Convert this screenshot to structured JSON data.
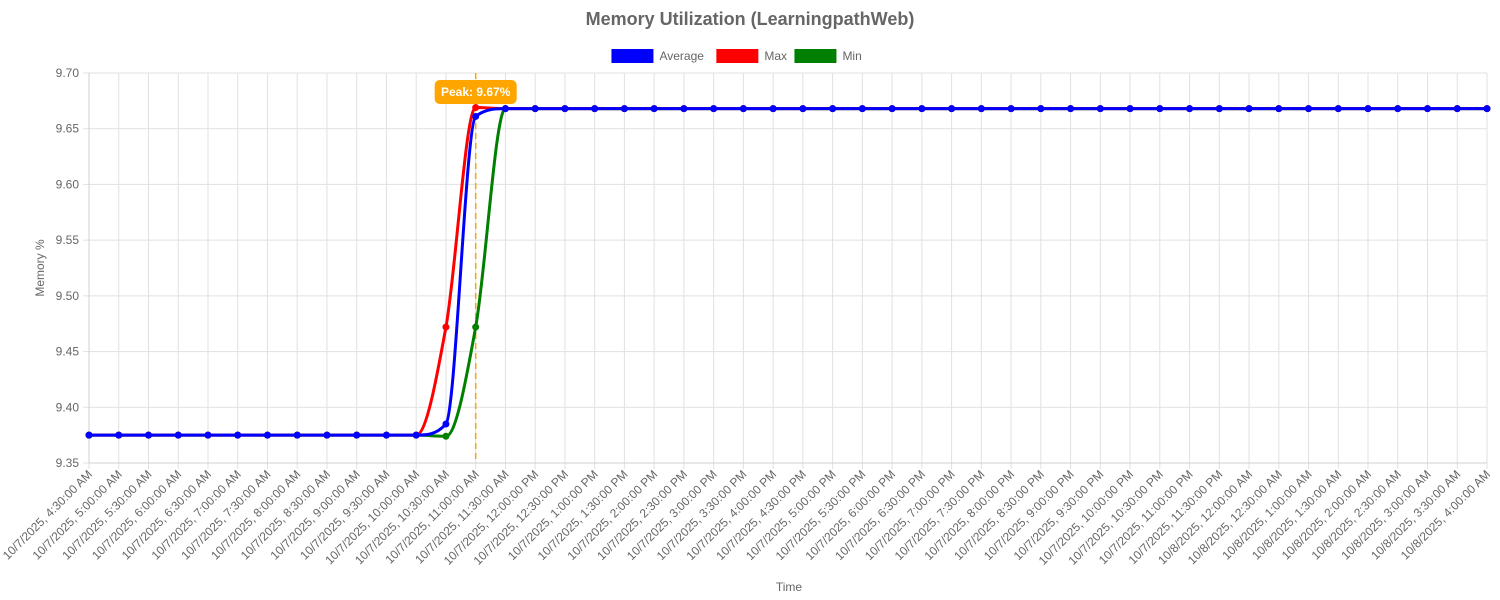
{
  "chart_data": {
    "type": "line",
    "title": "Memory Utilization (LearningpathWeb)",
    "xlabel": "Time",
    "ylabel": "Memory %",
    "ylim": [
      9.35,
      9.7
    ],
    "yticks": [
      "9.35",
      "9.40",
      "9.45",
      "9.50",
      "9.55",
      "9.60",
      "9.65",
      "9.70"
    ],
    "grid": true,
    "legend_position": "top-center",
    "categories": [
      "10/7/2025, 4:30:00 AM",
      "10/7/2025, 5:00:00 AM",
      "10/7/2025, 5:30:00 AM",
      "10/7/2025, 6:00:00 AM",
      "10/7/2025, 6:30:00 AM",
      "10/7/2025, 7:00:00 AM",
      "10/7/2025, 7:30:00 AM",
      "10/7/2025, 8:00:00 AM",
      "10/7/2025, 8:30:00 AM",
      "10/7/2025, 9:00:00 AM",
      "10/7/2025, 9:30:00 AM",
      "10/7/2025, 10:00:00 AM",
      "10/7/2025, 10:30:00 AM",
      "10/7/2025, 11:00:00 AM",
      "10/7/2025, 11:30:00 AM",
      "10/7/2025, 12:00:00 PM",
      "10/7/2025, 12:30:00 PM",
      "10/7/2025, 1:00:00 PM",
      "10/7/2025, 1:30:00 PM",
      "10/7/2025, 2:00:00 PM",
      "10/7/2025, 2:30:00 PM",
      "10/7/2025, 3:00:00 PM",
      "10/7/2025, 3:30:00 PM",
      "10/7/2025, 4:00:00 PM",
      "10/7/2025, 4:30:00 PM",
      "10/7/2025, 5:00:00 PM",
      "10/7/2025, 5:30:00 PM",
      "10/7/2025, 6:00:00 PM",
      "10/7/2025, 6:30:00 PM",
      "10/7/2025, 7:00:00 PM",
      "10/7/2025, 7:30:00 PM",
      "10/7/2025, 8:00:00 PM",
      "10/7/2025, 8:30:00 PM",
      "10/7/2025, 9:00:00 PM",
      "10/7/2025, 9:30:00 PM",
      "10/7/2025, 10:00:00 PM",
      "10/7/2025, 10:30:00 PM",
      "10/7/2025, 11:00:00 PM",
      "10/7/2025, 11:30:00 PM",
      "10/8/2025, 12:00:00 AM",
      "10/8/2025, 12:30:00 AM",
      "10/8/2025, 1:00:00 AM",
      "10/8/2025, 1:30:00 AM",
      "10/8/2025, 2:00:00 AM",
      "10/8/2025, 2:30:00 AM",
      "10/8/2025, 3:00:00 AM",
      "10/8/2025, 3:30:00 AM",
      "10/8/2025, 4:00:00 AM"
    ],
    "series": [
      {
        "name": "Average",
        "color": "#0000ff",
        "values": [
          9.375,
          9.375,
          9.375,
          9.375,
          9.375,
          9.375,
          9.375,
          9.375,
          9.375,
          9.375,
          9.375,
          9.375,
          9.385,
          9.661,
          9.668,
          9.668,
          9.668,
          9.668,
          9.668,
          9.668,
          9.668,
          9.668,
          9.668,
          9.668,
          9.668,
          9.668,
          9.668,
          9.668,
          9.668,
          9.668,
          9.668,
          9.668,
          9.668,
          9.668,
          9.668,
          9.668,
          9.668,
          9.668,
          9.668,
          9.668,
          9.668,
          9.668,
          9.668,
          9.668,
          9.668,
          9.668,
          9.668,
          9.668
        ]
      },
      {
        "name": "Max",
        "color": "#ff0000",
        "values": [
          9.375,
          9.375,
          9.375,
          9.375,
          9.375,
          9.375,
          9.375,
          9.375,
          9.375,
          9.375,
          9.375,
          9.375,
          9.472,
          9.669,
          9.668,
          9.668,
          9.668,
          9.668,
          9.668,
          9.668,
          9.668,
          9.668,
          9.668,
          9.668,
          9.668,
          9.668,
          9.668,
          9.668,
          9.668,
          9.668,
          9.668,
          9.668,
          9.668,
          9.668,
          9.668,
          9.668,
          9.668,
          9.668,
          9.668,
          9.668,
          9.668,
          9.668,
          9.668,
          9.668,
          9.668,
          9.668,
          9.668,
          9.668
        ]
      },
      {
        "name": "Min",
        "color": "#008000",
        "values": [
          9.375,
          9.375,
          9.375,
          9.375,
          9.375,
          9.375,
          9.375,
          9.375,
          9.375,
          9.375,
          9.375,
          9.375,
          9.374,
          9.472,
          9.668,
          9.668,
          9.668,
          9.668,
          9.668,
          9.668,
          9.668,
          9.668,
          9.668,
          9.668,
          9.668,
          9.668,
          9.668,
          9.668,
          9.668,
          9.668,
          9.668,
          9.668,
          9.668,
          9.668,
          9.668,
          9.668,
          9.668,
          9.668,
          9.668,
          9.668,
          9.668,
          9.668,
          9.668,
          9.668,
          9.668,
          9.668,
          9.668,
          9.668
        ]
      }
    ],
    "annotation": {
      "label": "Peak: 9.67%",
      "x": "10/7/2025, 11:00:00 AM",
      "value": 9.67,
      "color": "#ffa500"
    }
  }
}
